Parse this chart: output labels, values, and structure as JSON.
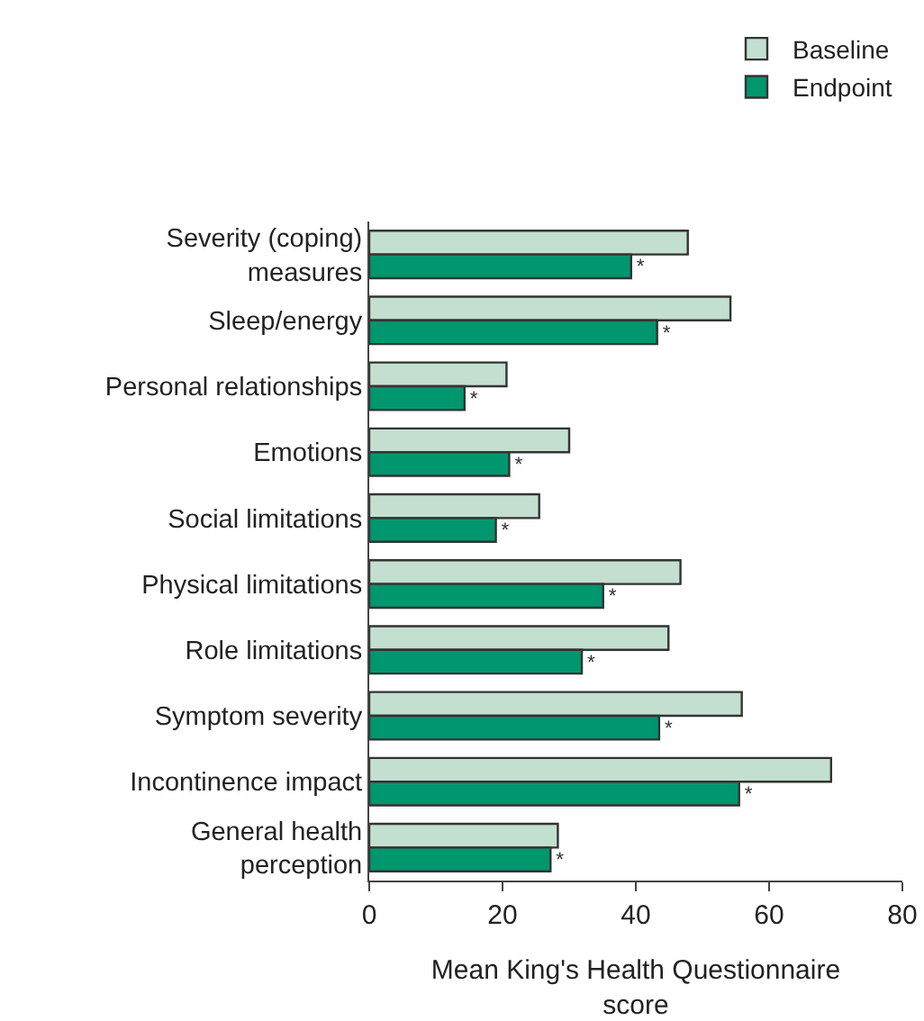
{
  "chart_data": {
    "type": "bar",
    "orientation": "horizontal",
    "categories": [
      "Severity (coping)\nmeasures",
      "Sleep/energy",
      "Personal relationships",
      "Emotions",
      "Social limitations",
      "Physical limitations",
      "Role limitations",
      "Symptom severity",
      "Incontinence impact",
      "General health\nperception"
    ],
    "series": [
      {
        "name": "Baseline",
        "color": "#c3dfd0",
        "values": [
          47.8,
          54.2,
          20.6,
          30,
          25.5,
          46.7,
          44.9,
          55.9,
          69.3,
          28.3
        ]
      },
      {
        "name": "Endpoint",
        "color": "#00966e",
        "values": [
          39.3,
          43.2,
          14.3,
          21,
          19,
          35.1,
          31.9,
          43.5,
          55.5,
          27.2
        ],
        "value_labels": [
          "*",
          "*",
          "*",
          "*",
          "*",
          "*",
          "*",
          "*",
          "*",
          "*"
        ]
      }
    ],
    "xlabel": "Mean King's Health Questionnaire\nscore",
    "xlim": [
      0,
      80
    ],
    "xticks": [
      0,
      20,
      40,
      60,
      80
    ],
    "grid": false,
    "legend": "top right"
  }
}
